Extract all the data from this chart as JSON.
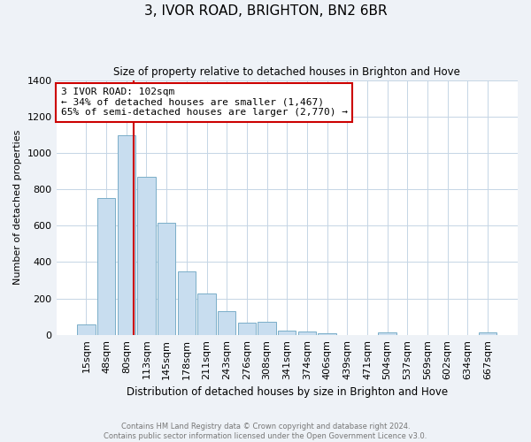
{
  "title": "3, IVOR ROAD, BRIGHTON, BN2 6BR",
  "subtitle": "Size of property relative to detached houses in Brighton and Hove",
  "xlabel": "Distribution of detached houses by size in Brighton and Hove",
  "ylabel": "Number of detached properties",
  "categories": [
    "15sqm",
    "48sqm",
    "80sqm",
    "113sqm",
    "145sqm",
    "178sqm",
    "211sqm",
    "243sqm",
    "276sqm",
    "308sqm",
    "341sqm",
    "374sqm",
    "406sqm",
    "439sqm",
    "471sqm",
    "504sqm",
    "537sqm",
    "569sqm",
    "602sqm",
    "634sqm",
    "667sqm"
  ],
  "values": [
    55,
    750,
    1095,
    870,
    615,
    350,
    228,
    130,
    65,
    70,
    25,
    20,
    10,
    0,
    0,
    12,
    0,
    0,
    0,
    0,
    12
  ],
  "bar_color": "#c8ddef",
  "bar_edge_color": "#7aaec8",
  "highlight_line_color": "#cc0000",
  "annotation_title": "3 IVOR ROAD: 102sqm",
  "annotation_line1": "← 34% of detached houses are smaller (1,467)",
  "annotation_line2": "65% of semi-detached houses are larger (2,770) →",
  "annotation_box_color": "#ffffff",
  "annotation_box_edge_color": "#cc0000",
  "ylim": [
    0,
    1400
  ],
  "yticks": [
    0,
    200,
    400,
    600,
    800,
    1000,
    1200,
    1400
  ],
  "footnote1": "Contains HM Land Registry data © Crown copyright and database right 2024.",
  "footnote2": "Contains public sector information licensed under the Open Government Licence v3.0.",
  "bg_color": "#eef2f7",
  "plot_bg_color": "#ffffff",
  "grid_color": "#c5d5e5"
}
